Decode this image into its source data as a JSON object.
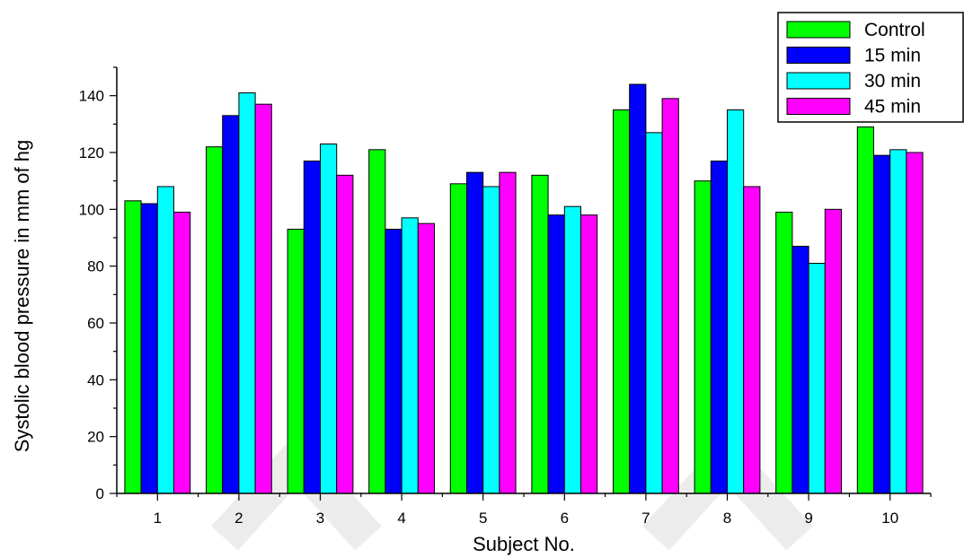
{
  "chart_data": {
    "type": "bar",
    "xlabel": "Subject No.",
    "ylabel": "Systolic blood pressure in mm of hg",
    "ylim": [
      0,
      150
    ],
    "yticks": [
      0,
      20,
      40,
      60,
      80,
      100,
      120,
      140
    ],
    "categories": [
      "1",
      "2",
      "3",
      "4",
      "5",
      "6",
      "7",
      "8",
      "9",
      "10"
    ],
    "series": [
      {
        "name": "Control",
        "color": "#00ff00",
        "values": [
          103,
          122,
          93,
          121,
          109,
          112,
          135,
          110,
          99,
          129
        ]
      },
      {
        "name": "15 min",
        "color": "#0000ff",
        "values": [
          102,
          133,
          117,
          93,
          113,
          98,
          144,
          117,
          87,
          119
        ]
      },
      {
        "name": "30 min",
        "color": "#00ffff",
        "values": [
          108,
          141,
          123,
          97,
          108,
          101,
          127,
          135,
          81,
          121
        ]
      },
      {
        "name": "45 min",
        "color": "#ff00ff",
        "values": [
          99,
          137,
          112,
          95,
          113,
          98,
          139,
          108,
          100,
          120
        ]
      }
    ],
    "legend_position": "top-right",
    "grid": false
  }
}
